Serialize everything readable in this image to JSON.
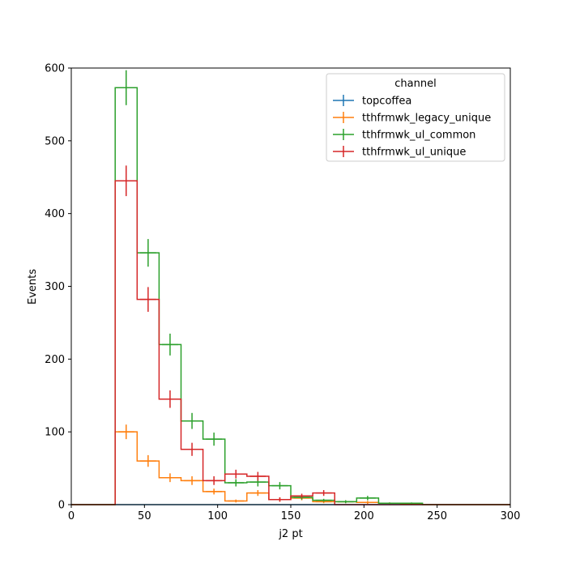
{
  "chart_data": {
    "type": "histogram-step",
    "xlabel": "j2 pt",
    "ylabel": "Events",
    "xlim": [
      0,
      300
    ],
    "ylim": [
      0,
      600
    ],
    "xticks": [
      0,
      50,
      100,
      150,
      200,
      250,
      300
    ],
    "yticks": [
      0,
      100,
      200,
      300,
      400,
      500,
      600
    ],
    "bin_edges": [
      0,
      15,
      30,
      45,
      60,
      75,
      90,
      105,
      120,
      135,
      150,
      165,
      180,
      195,
      210,
      225,
      240,
      255,
      270,
      285,
      300
    ],
    "legend": {
      "title": "channel",
      "placement": "top-right"
    },
    "grid": false,
    "series": [
      {
        "name": "topcoffea",
        "color": "#1f77b4",
        "values": [
          0,
          0,
          0,
          0,
          0,
          0,
          0,
          0,
          0,
          0,
          0,
          0,
          0,
          0,
          0,
          0,
          0,
          0,
          0,
          0
        ],
        "errors": [
          0,
          0,
          0,
          0,
          0,
          0,
          0,
          0,
          0,
          0,
          0,
          0,
          0,
          0,
          0,
          0,
          0,
          0,
          0,
          0
        ]
      },
      {
        "name": "tthfrmwk_legacy_unique",
        "color": "#ff7f0e",
        "values": [
          0,
          0,
          100,
          60,
          37,
          33,
          18,
          5,
          16,
          7,
          9,
          4,
          4,
          3,
          2,
          1,
          0,
          0,
          0,
          0
        ],
        "errors": [
          0,
          0,
          10,
          8,
          6,
          6,
          4,
          2,
          4,
          3,
          3,
          2,
          2,
          2,
          1,
          1,
          0,
          0,
          0,
          0
        ]
      },
      {
        "name": "tthfrmwk_ul_common",
        "color": "#2ca02c",
        "values": [
          0,
          0,
          573,
          346,
          220,
          115,
          90,
          30,
          31,
          26,
          10,
          6,
          4,
          9,
          2,
          2,
          0,
          0,
          0,
          0
        ],
        "errors": [
          0,
          0,
          24,
          19,
          15,
          11,
          9,
          5,
          6,
          5,
          3,
          2,
          2,
          3,
          1,
          1,
          0,
          0,
          0,
          0
        ]
      },
      {
        "name": "tthfrmwk_ul_unique",
        "color": "#d62728",
        "values": [
          0,
          0,
          445,
          282,
          145,
          76,
          33,
          42,
          39,
          7,
          12,
          16,
          0,
          0,
          0,
          0,
          0,
          0,
          0,
          0
        ],
        "errors": [
          0,
          0,
          21,
          17,
          12,
          9,
          6,
          6,
          6,
          3,
          3,
          4,
          0,
          0,
          0,
          0,
          0,
          0,
          0,
          0
        ]
      }
    ]
  }
}
